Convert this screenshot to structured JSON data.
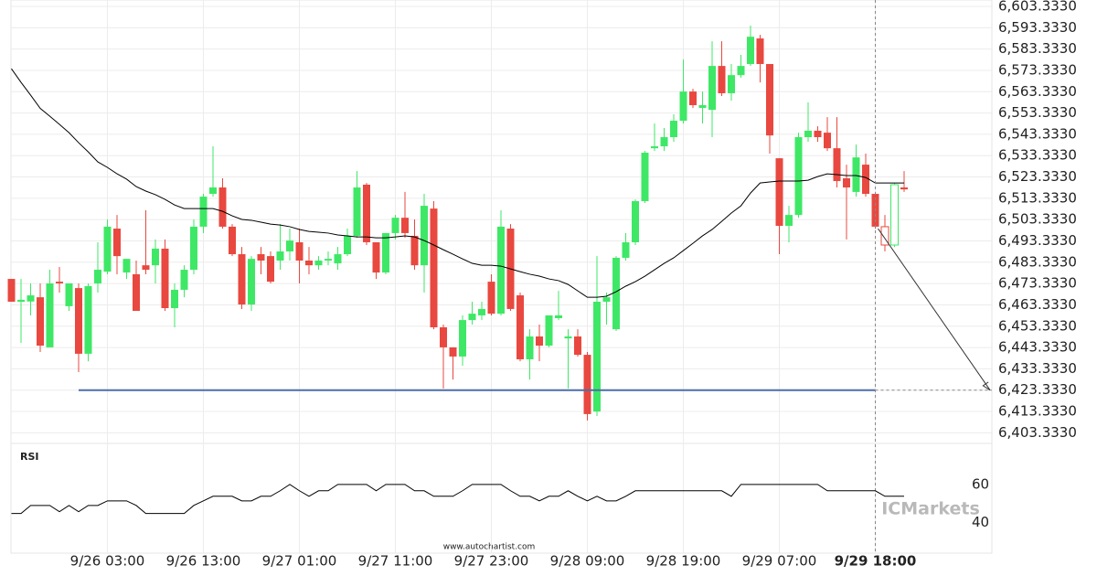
{
  "chart_data": [
    {
      "type": "candlestick",
      "categories": [
        null,
        null,
        null,
        null,
        null,
        null,
        null,
        null,
        null,
        null,
        "9/26 03:00",
        null,
        null,
        null,
        null,
        null,
        null,
        null,
        null,
        null,
        "9/26 13:00",
        null,
        null,
        null,
        null,
        null,
        null,
        null,
        null,
        null,
        "9/27 01:00",
        null,
        null,
        null,
        null,
        null,
        null,
        null,
        null,
        null,
        "9/27 11:00",
        null,
        null,
        null,
        null,
        null,
        null,
        null,
        null,
        null,
        "9/27 23:00",
        null,
        null,
        null,
        null,
        null,
        null,
        null,
        null,
        null,
        "9/28 09:00",
        null,
        null,
        null,
        null,
        null,
        null,
        null,
        null,
        null,
        "9/28 19:00",
        null,
        null,
        null,
        null,
        null,
        null,
        null,
        null,
        null,
        "9/29 07:00",
        null,
        null,
        null,
        null,
        null,
        null,
        null,
        null,
        null,
        "9/29 18:00",
        null,
        null,
        null
      ],
      "open": [
        6475.5,
        6464.8,
        6464.9,
        6466.9,
        6443.4,
        6474.2,
        6462.7,
        6471.2,
        6440.4,
        6473.4,
        6478.9,
        6499.1,
        6478.5,
        6477.7,
        6481.9,
        6481.9,
        6489.7,
        6461.8,
        6470.4,
        6479.8,
        6500.0,
        6515.4,
        6518.4,
        6500.0,
        6487.1,
        6463.5,
        6487.1,
        6486.2,
        6484.1,
        6488.4,
        6492.7,
        6484.1,
        6481.9,
        6484.1,
        6482.8,
        6487.1,
        6495.7,
        6519.7,
        6492.7,
        6478.5,
        6497.0,
        6504.2,
        6495.7,
        6481.9,
        6508.5,
        6452.8,
        6443.4,
        6439.1,
        6456.2,
        6458.4,
        6474.2,
        6459.2,
        6499.1,
        6467.8,
        6437.8,
        6448.5,
        6444.2,
        6457.1,
        6447.6,
        6448.5,
        6439.9,
        6413.3,
        6464.8,
        6451.9,
        6485.4,
        6492.7,
        6512.0,
        6536.8,
        6537.7,
        6542.0,
        6549.7,
        6563.4,
        6555.7,
        6554.8,
        6575.4,
        6562.6,
        6571.1,
        6576.3,
        6588.3,
        6576.3,
        6532.1,
        6500.4,
        6505.5,
        6542.0,
        6545.0,
        6544.1,
        6536.8,
        6522.7,
        6516.3,
        6529.1,
        6515.4,
        6500.0,
        6491.4,
        6518.4
      ],
      "high": [
        6475.5,
        6475.5,
        6473.4,
        6473.4,
        6479.8,
        6481.1,
        6473.4,
        6473.4,
        6473.4,
        6492.7,
        6503.4,
        6505.5,
        6484.9,
        6484.1,
        6507.7,
        6494.0,
        6494.0,
        6473.4,
        6481.9,
        6503.4,
        6515.4,
        6537.7,
        6522.7,
        6501.2,
        6490.5,
        6486.2,
        6490.5,
        6488.4,
        6501.2,
        6499.1,
        6499.1,
        6490.5,
        6486.2,
        6488.4,
        6490.5,
        6499.1,
        6526.1,
        6520.5,
        6492.7,
        6497.0,
        6505.5,
        6516.3,
        6503.4,
        6515.4,
        6512.0,
        6454.1,
        6443.4,
        6458.4,
        6464.8,
        6464.8,
        6477.7,
        6507.7,
        6501.2,
        6469.1,
        6451.9,
        6454.1,
        6458.4,
        6469.9,
        6451.9,
        6451.9,
        6441.2,
        6486.2,
        6469.1,
        6486.2,
        6497.0,
        6512.8,
        6535.5,
        6548.4,
        6546.3,
        6552.7,
        6578.4,
        6564.7,
        6563.4,
        6587.0,
        6587.0,
        6576.3,
        6580.6,
        6594.3,
        6590.0,
        6576.3,
        6532.1,
        6509.8,
        6544.1,
        6558.3,
        6547.1,
        6551.4,
        6551.4,
        6529.1,
        6538.5,
        6534.3,
        6516.3,
        6505.5,
        6520.5,
        6526.1
      ],
      "low": [
        6464.8,
        6445.5,
        6458.4,
        6441.2,
        6443.4,
        6469.1,
        6460.5,
        6431.8,
        6436.9,
        6469.1,
        6477.7,
        6477.7,
        6475.5,
        6460.5,
        6477.7,
        6473.4,
        6460.5,
        6452.8,
        6466.9,
        6477.7,
        6497.0,
        6514.1,
        6499.1,
        6486.2,
        6461.4,
        6460.5,
        6477.7,
        6473.4,
        6479.8,
        6484.1,
        6473.4,
        6477.7,
        6479.8,
        6481.9,
        6479.8,
        6486.2,
        6494.8,
        6491.4,
        6475.5,
        6477.7,
        6494.0,
        6494.8,
        6479.8,
        6469.1,
        6451.9,
        6424.1,
        6428.3,
        6434.8,
        6454.1,
        6456.2,
        6458.4,
        6458.4,
        6460.5,
        6436.9,
        6428.3,
        6436.9,
        6443.4,
        6456.2,
        6424.1,
        6439.1,
        6409.1,
        6411.2,
        6454.1,
        6451.1,
        6484.1,
        6491.4,
        6511.1,
        6535.5,
        6535.5,
        6539.8,
        6548.4,
        6555.7,
        6548.4,
        6542.0,
        6561.3,
        6559.1,
        6569.9,
        6575.4,
        6567.7,
        6534.3,
        6487.1,
        6492.7,
        6504.2,
        6539.8,
        6539.8,
        6535.5,
        6518.4,
        6494.0,
        6514.1,
        6514.1,
        6499.1,
        6488.4,
        6490.5,
        6516.3
      ],
      "close": [
        6464.8,
        6465.7,
        6467.8,
        6444.2,
        6473.4,
        6473.4,
        6473.4,
        6440.4,
        6472.1,
        6479.8,
        6500.0,
        6486.2,
        6484.9,
        6460.5,
        6479.8,
        6489.7,
        6461.8,
        6470.4,
        6479.8,
        6500.0,
        6514.1,
        6518.4,
        6500.0,
        6487.1,
        6463.5,
        6484.9,
        6484.1,
        6474.2,
        6488.4,
        6493.5,
        6484.1,
        6481.9,
        6484.1,
        6484.9,
        6487.1,
        6495.7,
        6518.4,
        6492.7,
        6478.5,
        6497.0,
        6504.2,
        6497.0,
        6481.9,
        6509.8,
        6452.8,
        6443.4,
        6439.1,
        6456.2,
        6459.2,
        6461.4,
        6459.2,
        6500.0,
        6461.4,
        6437.8,
        6448.5,
        6444.2,
        6458.4,
        6458.4,
        6448.5,
        6439.9,
        6412.1,
        6464.8,
        6466.9,
        6485.4,
        6492.7,
        6512.0,
        6534.7,
        6537.7,
        6542.0,
        6549.7,
        6563.4,
        6557.0,
        6557.0,
        6575.4,
        6562.6,
        6571.1,
        6575.4,
        6589.1,
        6576.3,
        6542.8,
        6500.4,
        6505.5,
        6542.0,
        6545.0,
        6542.0,
        6536.8,
        6521.4,
        6518.4,
        6532.5,
        6515.4,
        6500.0,
        6491.4,
        6519.7,
        6517.5
      ],
      "up_color": "#3ee866",
      "down_color": "#e8483f",
      "overlays": [
        {
          "color": "#000000",
          "values": [
            6574.1,
            6567.7,
            6561.7,
            6555.5,
            6551.8,
            6548.0,
            6544.1,
            6539.4,
            6535.1,
            6530.4,
            6527.8,
            6524.8,
            6522.3,
            6518.8,
            6516.7,
            6515.0,
            6512.8,
            6510.2,
            6508.5,
            6508.5,
            6508.5,
            6508.5,
            6507.2,
            6505.1,
            6503.4,
            6503.0,
            6502.1,
            6501.2,
            6500.8,
            6500.0,
            6498.7,
            6497.8,
            6497.4,
            6497.0,
            6496.1,
            6495.7,
            6495.2,
            6495.2,
            6494.8,
            6494.8,
            6495.2,
            6495.7,
            6495.2,
            6493.5,
            6491.4,
            6489.2,
            6487.1,
            6484.9,
            6482.8,
            6481.9,
            6481.9,
            6481.5,
            6480.2,
            6478.9,
            6477.7,
            6476.8,
            6475.5,
            6474.7,
            6472.9,
            6469.9,
            6466.9,
            6466.9,
            6467.4,
            6469.5,
            6472.1,
            6474.2,
            6476.8,
            6479.8,
            6482.8,
            6485.4,
            6488.8,
            6492.2,
            6495.7,
            6498.7,
            6502.5,
            6506.4,
            6509.8,
            6515.8,
            6520.5,
            6521.0,
            6521.4,
            6521.4,
            6521.4,
            6521.8,
            6523.5,
            6524.8,
            6524.4,
            6524.0,
            6524.0,
            6523.1,
            6520.5,
            6520.5,
            6520.5,
            6520.5
          ]
        }
      ],
      "level": 6423.333,
      "level_color": "#4a6fa8",
      "arrow_start": 6499.1,
      "ylim": [
        6398.333,
        6606.333
      ],
      "yticks": [
        {
          "value": 6403.333,
          "label": "6,403.3330"
        },
        {
          "value": 6413.333,
          "label": "6,413.3330"
        },
        {
          "value": 6423.333,
          "label": "6,423.3330"
        },
        {
          "value": 6433.333,
          "label": "6,433.3330"
        },
        {
          "value": 6443.333,
          "label": "6,443.3330"
        },
        {
          "value": 6453.333,
          "label": "6,453.3330"
        },
        {
          "value": 6463.333,
          "label": "6,463.3330"
        },
        {
          "value": 6473.333,
          "label": "6,473.3330"
        },
        {
          "value": 6483.333,
          "label": "6,483.3330"
        },
        {
          "value": 6493.333,
          "label": "6,493.3330"
        },
        {
          "value": 6503.333,
          "label": "6,503.3330"
        },
        {
          "value": 6513.333,
          "label": "6,513.3330"
        },
        {
          "value": 6523.333,
          "label": "6,523.3330"
        },
        {
          "value": 6533.333,
          "label": "6,533.3330"
        },
        {
          "value": 6543.333,
          "label": "6,543.3330"
        },
        {
          "value": 6553.333,
          "label": "6,553.3330"
        },
        {
          "value": 6563.333,
          "label": "6,563.3330"
        },
        {
          "value": 6573.333,
          "label": "6,573.3330"
        },
        {
          "value": 6583.333,
          "label": "6,583.3330"
        },
        {
          "value": 6593.333,
          "label": "6,593.3330"
        },
        {
          "value": 6603.333,
          "label": "6,603.3330"
        }
      ],
      "grid": true
    },
    {
      "type": "line",
      "title": "RSI",
      "color": "#000000",
      "values": [
        44.8,
        44.8,
        49.0,
        49.0,
        49.0,
        45.7,
        49.0,
        45.7,
        49.0,
        49.0,
        51.4,
        51.4,
        51.4,
        49.0,
        44.8,
        44.8,
        44.8,
        44.8,
        44.8,
        49.0,
        51.4,
        53.8,
        53.8,
        53.8,
        51.4,
        51.4,
        53.8,
        53.8,
        56.7,
        60,
        56.7,
        53.8,
        56.7,
        56.7,
        60,
        60,
        60,
        60,
        56.7,
        60,
        60,
        60,
        56.7,
        56.7,
        53.8,
        53.8,
        53.8,
        56.7,
        60,
        60,
        60,
        60,
        56.7,
        53.8,
        53.8,
        51.4,
        53.8,
        53.8,
        56.7,
        53.8,
        51.4,
        53.8,
        51.4,
        51.4,
        53.8,
        56.7,
        56.7,
        56.7,
        56.7,
        56.7,
        56.7,
        56.7,
        56.7,
        56.7,
        56.7,
        53.8,
        60,
        60,
        60,
        60,
        60,
        60,
        60,
        60,
        60,
        56.7,
        56.7,
        56.7,
        56.7,
        56.7,
        56.7,
        53.8,
        53.8,
        53.8
      ],
      "ylim": [
        24,
        81.5
      ],
      "yticks": [
        40,
        60
      ]
    }
  ],
  "watermark": "www.autochartist.com",
  "logo": "ICMarkets"
}
